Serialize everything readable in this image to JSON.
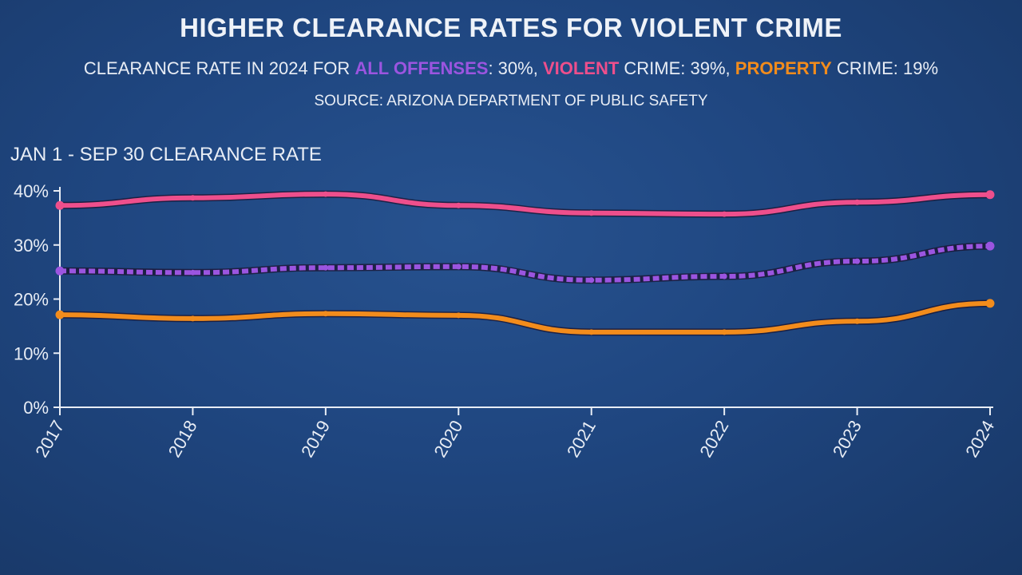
{
  "chart_data": {
    "type": "line",
    "title": "HIGHER CLEARANCE RATES FOR VIOLENT CRIME",
    "subtitle_parts": [
      {
        "text": "CLEARANCE RATE IN 2024 FOR ",
        "color": "#e8edf5"
      },
      {
        "text": "ALL OFFENSES",
        "color": "#9b55e0"
      },
      {
        "text": ": 30%, ",
        "color": "#e8edf5"
      },
      {
        "text": "VIOLENT",
        "color": "#ee4f8c"
      },
      {
        "text": " CRIME: 39%, ",
        "color": "#e8edf5"
      },
      {
        "text": "PROPERTY",
        "color": "#f28c1c"
      },
      {
        "text": " CRIME: 19%",
        "color": "#e8edf5"
      }
    ],
    "source": "SOURCE: ARIZONA DEPARTMENT OF PUBLIC SAFETY",
    "ylabel": "JAN 1 - SEP 30 CLEARANCE RATE",
    "xlabel": "",
    "categories": [
      "2017",
      "2018",
      "2019",
      "2020",
      "2021",
      "2022",
      "2023",
      "2024"
    ],
    "ylim": [
      0,
      40
    ],
    "yticks": [
      "0%",
      "10%",
      "20%",
      "30%",
      "40%"
    ],
    "grid": false,
    "series": [
      {
        "name": "VIOLENT",
        "color": "#ee4f8c",
        "dashed": false,
        "values": [
          37.3,
          38.7,
          39.4,
          37.3,
          35.9,
          35.7,
          37.9,
          39.3
        ]
      },
      {
        "name": "ALL OFFENSES",
        "color": "#9b55e0",
        "dashed": true,
        "values": [
          25.2,
          24.9,
          25.8,
          26.0,
          23.5,
          24.2,
          27.0,
          29.8
        ]
      },
      {
        "name": "PROPERTY",
        "color": "#f28c1c",
        "dashed": false,
        "values": [
          17.1,
          16.4,
          17.3,
          17.0,
          13.9,
          13.9,
          15.9,
          19.2
        ]
      }
    ]
  }
}
